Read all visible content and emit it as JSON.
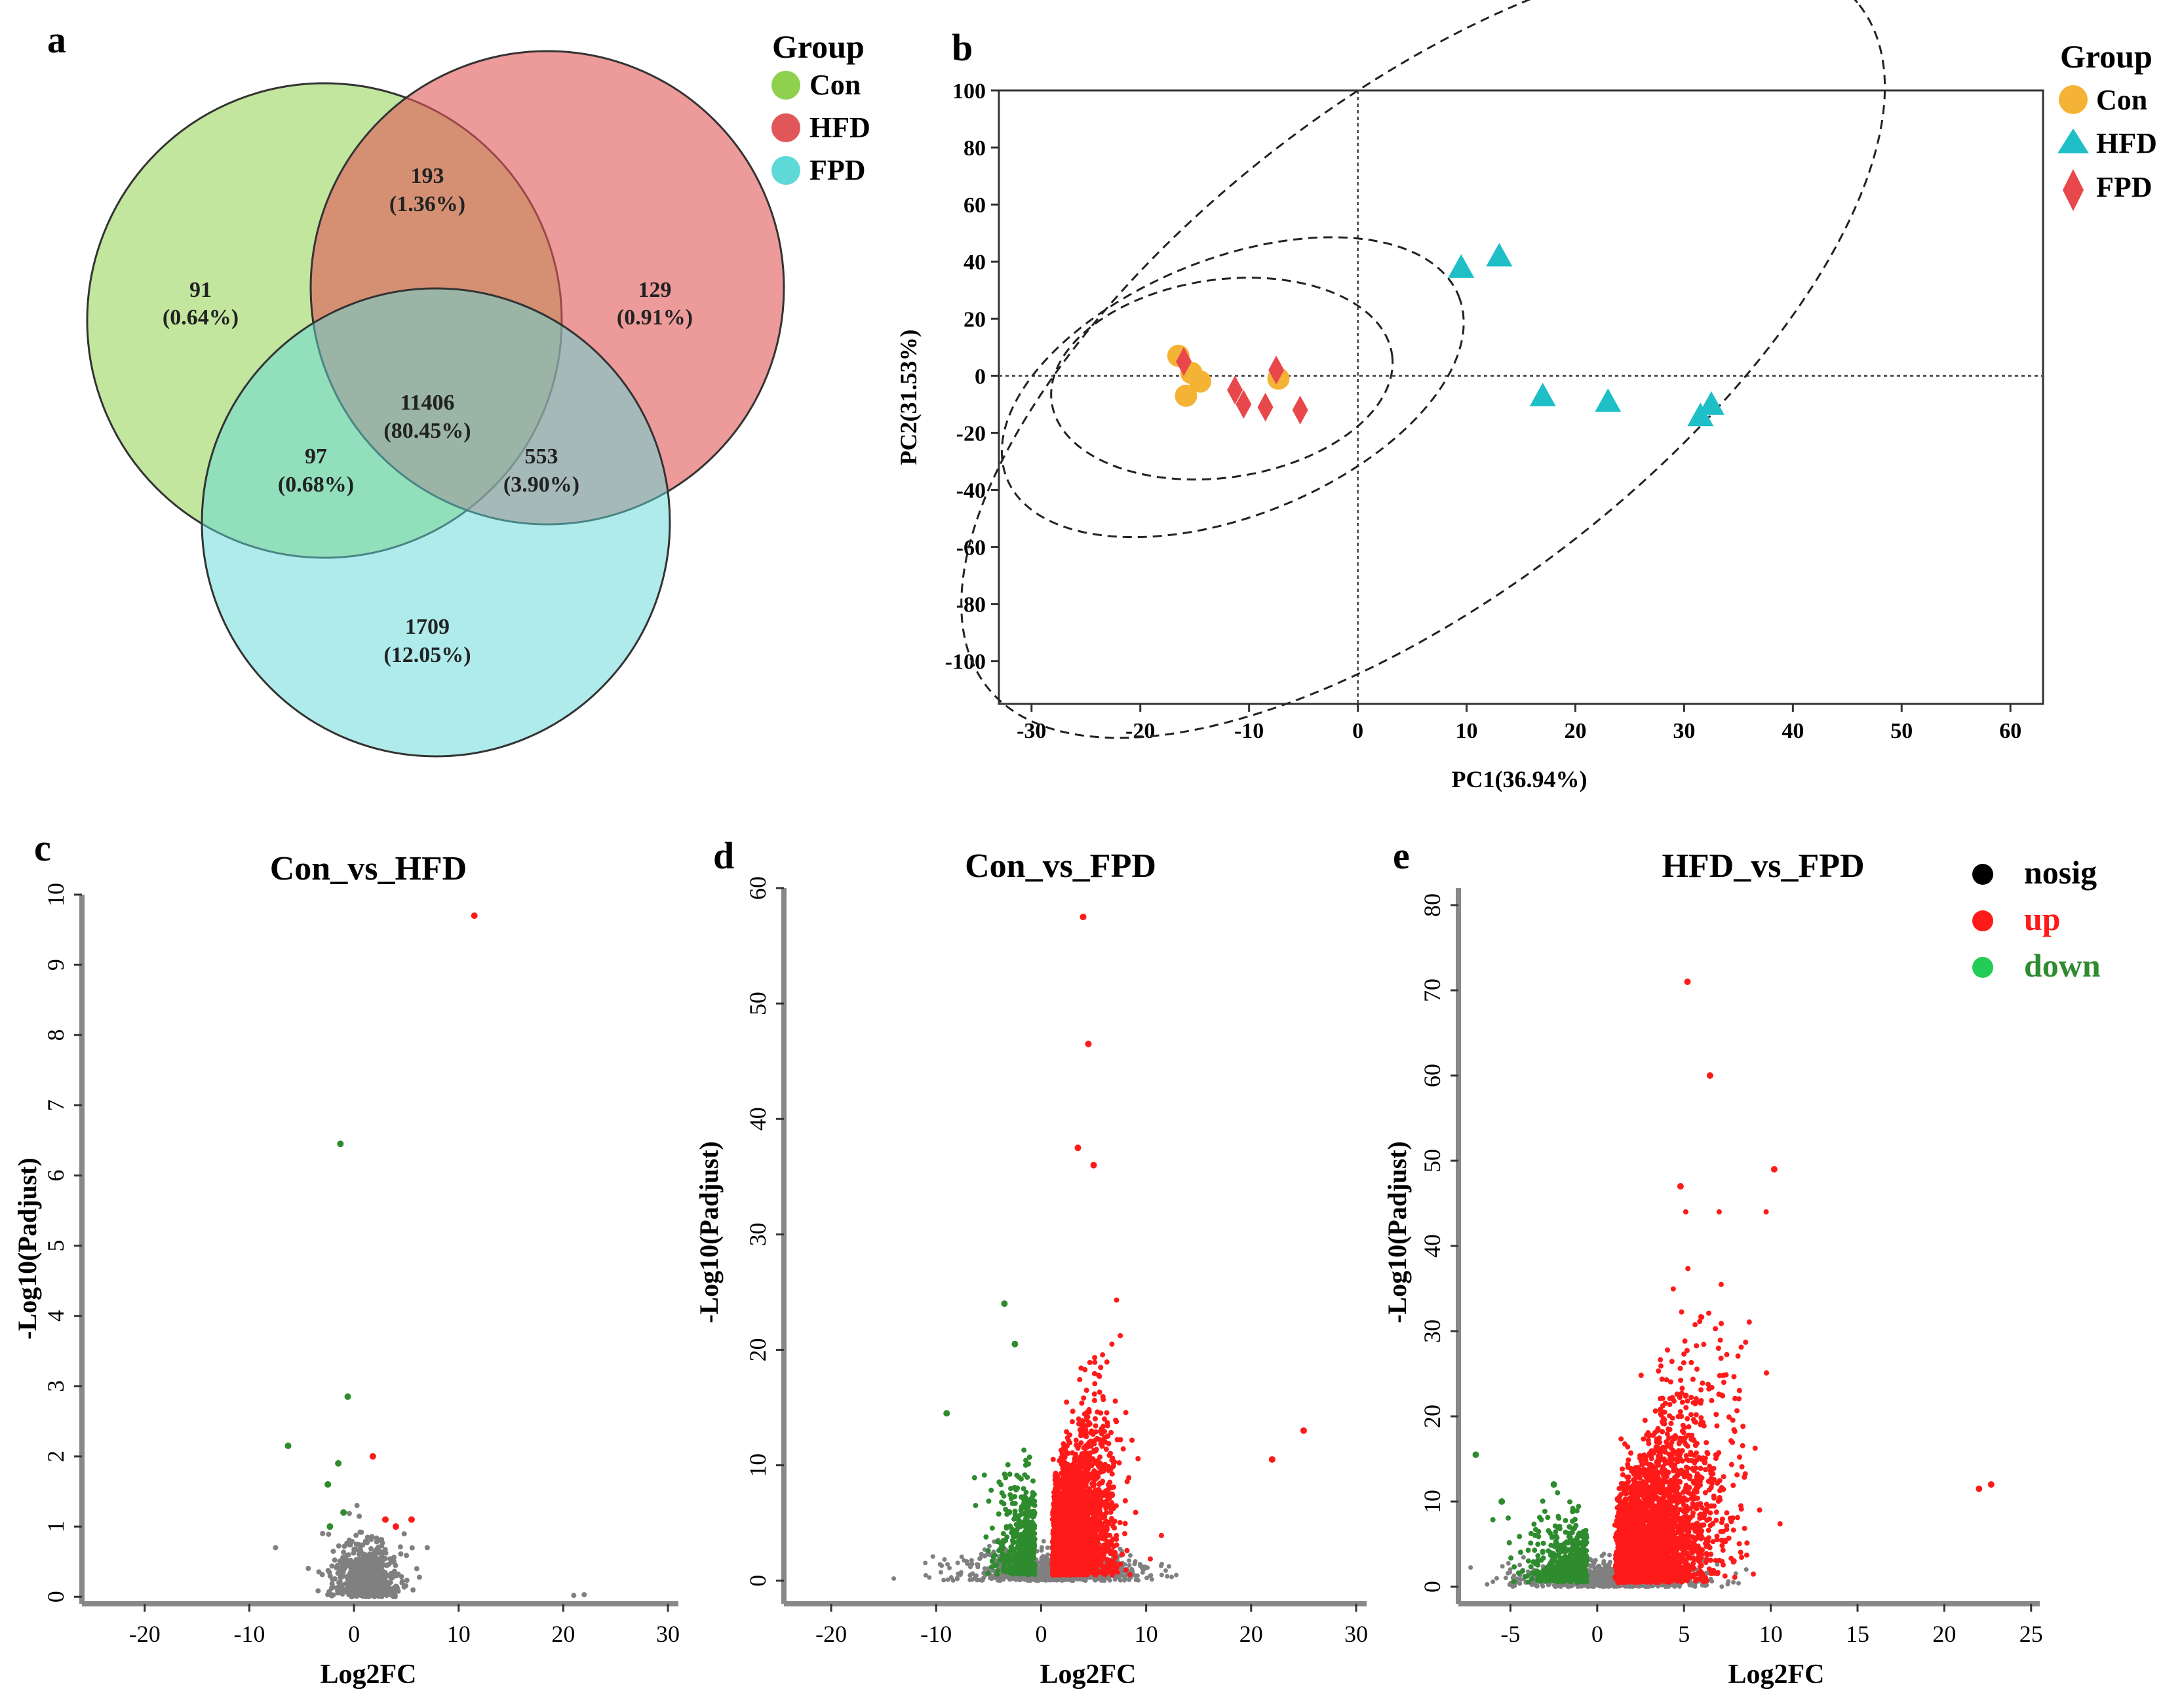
{
  "colors": {
    "con": "#8fd14f",
    "hfd": "#e15759",
    "fpd": "#5fd8d8",
    "pca_con": "#f5b335",
    "pca_hfd": "#1fbfc8",
    "pca_fpd": "#e8474c",
    "nosig": "#808080",
    "up": "#ff1a1a",
    "down": "#2e8b2e",
    "legend_nosig": "#000000",
    "legend_down": "#22cc55"
  },
  "chart_data": [
    {
      "type": "venn",
      "panel_label": "a",
      "legend": {
        "title": "Group",
        "items": [
          "Con",
          "HFD",
          "FPD"
        ]
      },
      "sets": [
        "Con",
        "HFD",
        "FPD"
      ],
      "regions": [
        {
          "id": "con_only",
          "count": "91",
          "pct": "(0.64%)"
        },
        {
          "id": "con_hfd",
          "count": "193",
          "pct": "(1.36%)"
        },
        {
          "id": "hfd_only",
          "count": "129",
          "pct": "(0.91%)"
        },
        {
          "id": "all",
          "count": "11406",
          "pct": "(80.45%)"
        },
        {
          "id": "con_fpd",
          "count": "97",
          "pct": "(0.68%)"
        },
        {
          "id": "hfd_fpd",
          "count": "553",
          "pct": "(3.90%)"
        },
        {
          "id": "fpd_only",
          "count": "1709",
          "pct": "(12.05%)"
        }
      ]
    },
    {
      "type": "scatter",
      "panel_label": "b",
      "xlabel": "PC1(36.94%)",
      "ylabel": "PC2(31.53%)",
      "xlim": [
        -33,
        63
      ],
      "ylim": [
        -115,
        100
      ],
      "xticks": [
        "-30",
        "-20",
        "-10",
        "0",
        "10",
        "20",
        "30",
        "40",
        "50",
        "60"
      ],
      "yticks": [
        "100",
        "80",
        "60",
        "40",
        "20",
        "0",
        "-20",
        "-40",
        "-60",
        "-80",
        "-100"
      ],
      "legend": {
        "title": "Group",
        "items": [
          "Con",
          "HFD",
          "FPD"
        ]
      },
      "series": [
        {
          "name": "Con",
          "marker": "circle",
          "points": [
            [
              -16.5,
              7
            ],
            [
              -15.3,
              1
            ],
            [
              -14.5,
              -2
            ],
            [
              -15.8,
              -7
            ],
            [
              -7.3,
              -1
            ]
          ]
        },
        {
          "name": "HFD",
          "marker": "triangle",
          "points": [
            [
              9.5,
              38
            ],
            [
              13,
              42
            ],
            [
              17,
              -7
            ],
            [
              23,
              -9
            ],
            [
              31.5,
              -14
            ],
            [
              32.5,
              -10
            ]
          ]
        },
        {
          "name": "FPD",
          "marker": "diamond",
          "points": [
            [
              -16,
              5
            ],
            [
              -11.3,
              -5
            ],
            [
              -10.5,
              -10
            ],
            [
              -8.5,
              -11
            ],
            [
              -5.3,
              -12
            ],
            [
              -7.5,
              2
            ]
          ]
        }
      ],
      "ellipses": [
        {
          "cx": 6,
          "cy": 10.5,
          "rx": 50.9,
          "ry": 22.6,
          "angle_deg": -38
        },
        {
          "cx": -12.5,
          "cy": -1,
          "rx": 15.8,
          "ry": 9.1,
          "angle_deg": -8
        },
        {
          "cx": -11.5,
          "cy": -4,
          "rx": 22.4,
          "ry": 11.8,
          "angle_deg": -22
        }
      ]
    },
    {
      "type": "scatter",
      "panel_label": "c",
      "title": "Con_vs_HFD",
      "xlabel": "Log2FC",
      "ylabel": "-Log10(Padjust)",
      "xlim": [
        -26,
        31
      ],
      "ylim": [
        -0.1,
        10
      ],
      "xticks": [
        "-20",
        "-10",
        "0",
        "10",
        "20",
        "30"
      ],
      "yticks": [
        "0",
        "1",
        "2",
        "3",
        "4",
        "5",
        "6",
        "7",
        "8",
        "9",
        "10"
      ],
      "series": [
        {
          "name": "up",
          "points": [
            [
              11.5,
              9.7
            ],
            [
              1.8,
              2.0
            ],
            [
              3.0,
              1.1
            ],
            [
              4.0,
              1.0
            ],
            [
              5.5,
              1.1
            ]
          ]
        },
        {
          "name": "down",
          "points": [
            [
              -1.3,
              6.45
            ],
            [
              -0.6,
              2.85
            ],
            [
              -6.3,
              2.15
            ],
            [
              -1.5,
              1.9
            ],
            [
              -2.5,
              1.6
            ],
            [
              -1.0,
              1.2
            ],
            [
              -2.3,
              1.0
            ]
          ]
        },
        {
          "name": "nosig",
          "points": []
        }
      ]
    },
    {
      "type": "scatter",
      "panel_label": "d",
      "title": "Con_vs_FPD",
      "xlabel": "Log2FC",
      "ylabel": "-Log10(Padjust)",
      "xlim": [
        -24.5,
        31
      ],
      "ylim": [
        -2,
        60
      ],
      "xticks": [
        "-20",
        "-10",
        "0",
        "10",
        "20",
        "30"
      ],
      "yticks": [
        "0",
        "10",
        "20",
        "30",
        "40",
        "50",
        "60"
      ],
      "series": [
        {
          "name": "up",
          "points": [
            [
              4,
              57.5
            ],
            [
              4.5,
              46.5
            ],
            [
              3.5,
              37.5
            ],
            [
              5,
              36
            ],
            [
              22,
              10.5
            ],
            [
              25,
              13
            ]
          ]
        },
        {
          "name": "down",
          "points": [
            [
              -3.5,
              24
            ],
            [
              -2.5,
              20.5
            ],
            [
              -9,
              14.5
            ]
          ]
        },
        {
          "name": "nosig",
          "points": []
        }
      ]
    },
    {
      "type": "scatter",
      "panel_label": "e",
      "title": "HFD_vs_FPD",
      "xlabel": "Log2FC",
      "ylabel": "-Log10(Padjust)",
      "xlim": [
        -8,
        25.5
      ],
      "ylim": [
        -2,
        82
      ],
      "xticks": [
        "-5",
        "0",
        "5",
        "10",
        "15",
        "20",
        "25"
      ],
      "yticks": [
        "0",
        "10",
        "20",
        "30",
        "40",
        "50",
        "60",
        "70",
        "80"
      ],
      "legend": {
        "items": [
          "nosig",
          "up",
          "down"
        ]
      },
      "series": [
        {
          "name": "up",
          "points": [
            [
              5.2,
              71
            ],
            [
              6.5,
              60
            ],
            [
              10.2,
              49
            ],
            [
              4.8,
              47
            ],
            [
              22,
              11.5
            ],
            [
              22.7,
              12
            ]
          ]
        },
        {
          "name": "down",
          "points": [
            [
              -7,
              15.5
            ],
            [
              -5.5,
              10
            ],
            [
              -2.5,
              12
            ]
          ]
        },
        {
          "name": "nosig",
          "points": []
        }
      ]
    }
  ]
}
